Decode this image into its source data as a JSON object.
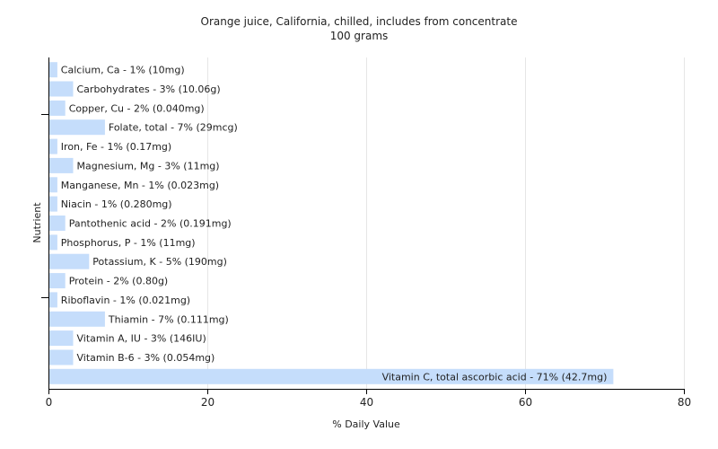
{
  "chart_data": {
    "type": "bar",
    "orientation": "horizontal",
    "title": "Orange juice, California, chilled, includes from concentrate",
    "subtitle": "100 grams",
    "xlabel": "% Daily Value",
    "ylabel": "Nutrient",
    "xlim": [
      0,
      80
    ],
    "xticks": [
      0,
      20,
      40,
      60,
      80
    ],
    "grid": true,
    "bar_color": "#c5ddfb",
    "categories": [
      "Calcium, Ca",
      "Carbohydrates",
      "Copper, Cu",
      "Folate, total",
      "Iron, Fe",
      "Magnesium, Mg",
      "Manganese, Mn",
      "Niacin",
      "Pantothenic acid",
      "Phosphorus, P",
      "Potassium, K",
      "Protein",
      "Riboflavin",
      "Thiamin",
      "Vitamin A, IU",
      "Vitamin B-6",
      "Vitamin C, total ascorbic acid"
    ],
    "values": [
      1,
      3,
      2,
      7,
      1,
      3,
      1,
      1,
      2,
      1,
      5,
      2,
      1,
      7,
      3,
      3,
      71
    ],
    "labels": [
      "Calcium, Ca - 1% (10mg)",
      "Carbohydrates - 3% (10.06g)",
      "Copper, Cu - 2% (0.040mg)",
      "Folate, total - 7% (29mcg)",
      "Iron, Fe - 1% (0.17mg)",
      "Magnesium, Mg - 3% (11mg)",
      "Manganese, Mn - 1% (0.023mg)",
      "Niacin - 1% (0.280mg)",
      "Pantothenic acid - 2% (0.191mg)",
      "Phosphorus, P - 1% (11mg)",
      "Potassium, K - 5% (190mg)",
      "Protein - 2% (0.80g)",
      "Riboflavin - 1% (0.021mg)",
      "Thiamin - 7% (0.111mg)",
      "Vitamin A, IU - 3% (146IU)",
      "Vitamin B-6 - 3% (0.054mg)",
      "Vitamin C, total ascorbic acid - 71% (42.7mg)"
    ]
  }
}
